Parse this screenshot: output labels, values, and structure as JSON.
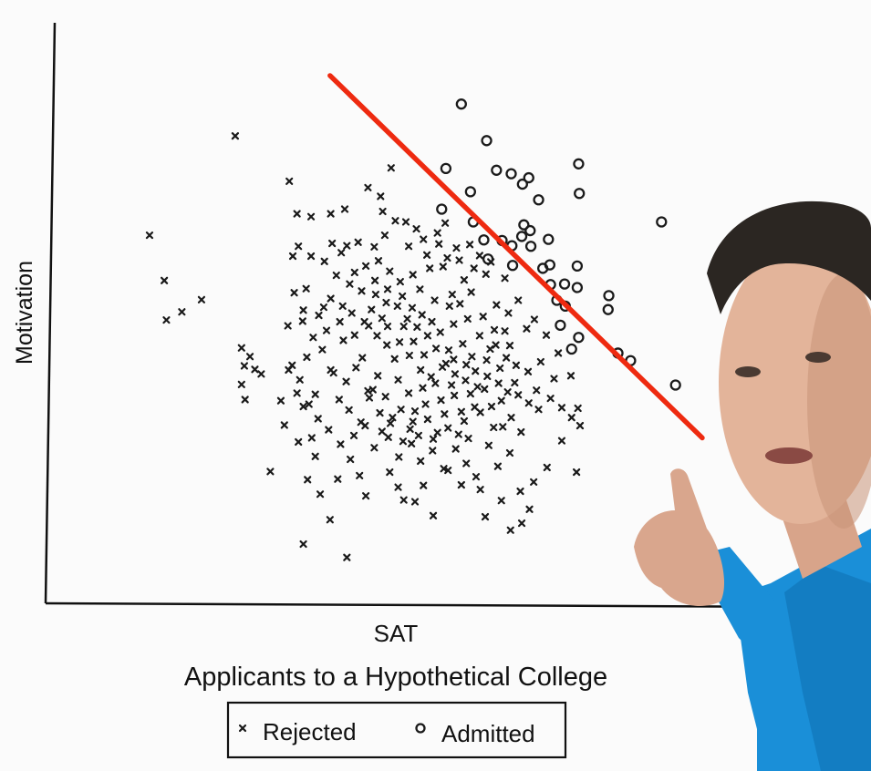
{
  "chart_data": {
    "type": "scatter",
    "title": "Applicants to a Hypothetical College",
    "xlabel": "SAT",
    "ylabel": "Motivation",
    "xlim": [
      0,
      100
    ],
    "ylim": [
      0,
      100
    ],
    "grid": false,
    "legend": {
      "placement": "bottom-center",
      "entries": [
        "Rejected",
        "Admitted"
      ]
    },
    "annotation": {
      "type": "line",
      "color": "#ee2a10",
      "from": [
        40.5,
        90.9
      ],
      "to": [
        93.5,
        28.5
      ]
    },
    "series": [
      {
        "name": "Rejected",
        "marker": "x",
        "points": [
          [
            27.0,
            80.5
          ],
          [
            14.8,
            63.4
          ],
          [
            16.9,
            55.6
          ],
          [
            22.2,
            52.3
          ],
          [
            17.2,
            48.8
          ],
          [
            19.4,
            50.2
          ],
          [
            34.7,
            72.7
          ],
          [
            35.8,
            67.1
          ],
          [
            37.8,
            66.6
          ],
          [
            40.6,
            67.1
          ],
          [
            42.6,
            67.9
          ],
          [
            42.9,
            61.6
          ],
          [
            44.5,
            62.2
          ],
          [
            45.9,
            71.6
          ],
          [
            47.7,
            70.1
          ],
          [
            48.0,
            67.5
          ],
          [
            49.8,
            65.9
          ],
          [
            51.3,
            65.7
          ],
          [
            52.8,
            64.5
          ],
          [
            49.2,
            75.0
          ],
          [
            53.8,
            62.7
          ],
          [
            55.8,
            63.8
          ],
          [
            56.9,
            65.5
          ],
          [
            57.2,
            59.5
          ],
          [
            58.9,
            59.1
          ],
          [
            60.4,
            61.8
          ],
          [
            61.8,
            59.9
          ],
          [
            41.4,
            56.5
          ],
          [
            43.3,
            55.0
          ],
          [
            45.6,
            58.1
          ],
          [
            47.4,
            59.0
          ],
          [
            49.0,
            57.2
          ],
          [
            50.5,
            55.4
          ],
          [
            52.3,
            56.6
          ],
          [
            53.3,
            54.1
          ],
          [
            54.7,
            57.7
          ],
          [
            56.6,
            58.0
          ],
          [
            57.9,
            53.2
          ],
          [
            59.6,
            55.7
          ],
          [
            60.6,
            53.6
          ],
          [
            62.7,
            56.7
          ],
          [
            64.2,
            51.4
          ],
          [
            65.9,
            50.0
          ],
          [
            67.3,
            52.2
          ],
          [
            68.5,
            47.3
          ],
          [
            69.6,
            48.9
          ],
          [
            71.3,
            46.2
          ],
          [
            73.0,
            43.1
          ],
          [
            74.8,
            39.2
          ],
          [
            75.8,
            33.6
          ],
          [
            76.1,
            30.6
          ],
          [
            35.4,
            53.5
          ],
          [
            37.1,
            54.2
          ],
          [
            36.6,
            48.6
          ],
          [
            38.1,
            45.8
          ],
          [
            39.6,
            51.0
          ],
          [
            40.0,
            47.0
          ],
          [
            41.9,
            48.5
          ],
          [
            42.4,
            45.3
          ],
          [
            44.0,
            46.2
          ],
          [
            45.1,
            42.3
          ],
          [
            46.4,
            50.6
          ],
          [
            47.9,
            49.1
          ],
          [
            48.6,
            44.5
          ],
          [
            49.7,
            42.1
          ],
          [
            51.0,
            47.7
          ],
          [
            52.4,
            45.1
          ],
          [
            53.9,
            42.8
          ],
          [
            55.0,
            48.5
          ],
          [
            56.2,
            46.7
          ],
          [
            57.4,
            43.6
          ],
          [
            58.1,
            48.1
          ],
          [
            59.4,
            44.7
          ],
          [
            60.7,
            42.5
          ],
          [
            61.8,
            46.1
          ],
          [
            63.3,
            43.8
          ],
          [
            64.7,
            40.5
          ],
          [
            66.1,
            44.4
          ],
          [
            67.0,
            41.0
          ],
          [
            68.7,
            39.9
          ],
          [
            69.9,
            36.7
          ],
          [
            41.0,
            39.7
          ],
          [
            42.8,
            38.2
          ],
          [
            44.2,
            40.6
          ],
          [
            45.9,
            36.6
          ],
          [
            47.3,
            39.2
          ],
          [
            48.4,
            35.6
          ],
          [
            50.2,
            38.5
          ],
          [
            51.7,
            36.2
          ],
          [
            52.6,
            33.1
          ],
          [
            54.1,
            34.3
          ],
          [
            55.5,
            37.9
          ],
          [
            56.8,
            32.6
          ],
          [
            58.2,
            35.8
          ],
          [
            59.6,
            31.4
          ],
          [
            61.1,
            33.8
          ],
          [
            62.5,
            36.9
          ],
          [
            63.8,
            30.3
          ],
          [
            64.9,
            34.9
          ],
          [
            66.3,
            32.0
          ],
          [
            67.7,
            29.5
          ],
          [
            37.5,
            34.3
          ],
          [
            38.8,
            31.8
          ],
          [
            40.3,
            29.9
          ],
          [
            42.0,
            27.4
          ],
          [
            43.9,
            28.9
          ],
          [
            45.5,
            30.6
          ],
          [
            46.8,
            26.8
          ],
          [
            48.8,
            28.6
          ],
          [
            50.3,
            25.2
          ],
          [
            52.1,
            27.5
          ],
          [
            53.4,
            24.5
          ],
          [
            55.2,
            28.3
          ],
          [
            56.7,
            23.2
          ],
          [
            58.4,
            26.6
          ],
          [
            59.9,
            24.1
          ],
          [
            61.3,
            21.8
          ],
          [
            63.1,
            27.2
          ],
          [
            64.4,
            23.6
          ],
          [
            66.1,
            25.9
          ],
          [
            67.6,
            19.3
          ],
          [
            68.9,
            16.2
          ],
          [
            69.5,
            20.9
          ],
          [
            71.4,
            23.4
          ],
          [
            73.5,
            28.0
          ],
          [
            75.6,
            22.6
          ],
          [
            34.5,
            47.8
          ],
          [
            35.1,
            41.0
          ],
          [
            36.2,
            38.5
          ],
          [
            37.2,
            42.4
          ],
          [
            38.4,
            36.0
          ],
          [
            39.4,
            43.7
          ],
          [
            40.6,
            40.2
          ],
          [
            41.8,
            35.1
          ],
          [
            43.2,
            33.3
          ],
          [
            44.9,
            31.2
          ],
          [
            46.1,
            35.4
          ],
          [
            47.6,
            32.8
          ],
          [
            49.1,
            31.0
          ],
          [
            50.6,
            33.4
          ],
          [
            51.9,
            30.0
          ],
          [
            53.1,
            28.9
          ],
          [
            54.4,
            31.7
          ],
          [
            55.8,
            29.4
          ],
          [
            57.3,
            30.2
          ],
          [
            58.8,
            29.1
          ],
          [
            60.2,
            28.4
          ],
          [
            27.9,
            44.0
          ],
          [
            28.3,
            40.9
          ],
          [
            27.9,
            37.7
          ],
          [
            28.4,
            35.1
          ],
          [
            29.1,
            42.5
          ],
          [
            29.8,
            40.3
          ],
          [
            30.7,
            39.5
          ],
          [
            32.0,
            22.7
          ],
          [
            34.6,
            40.2
          ],
          [
            35.8,
            36.2
          ],
          [
            36.7,
            33.9
          ],
          [
            37.9,
            28.5
          ],
          [
            38.4,
            25.3
          ],
          [
            37.3,
            21.3
          ],
          [
            36.7,
            10.2
          ],
          [
            40.5,
            14.4
          ],
          [
            42.9,
            7.9
          ],
          [
            50.2,
            20.0
          ],
          [
            52.6,
            17.5
          ],
          [
            55.2,
            15.1
          ],
          [
            57.3,
            22.9
          ],
          [
            59.2,
            20.4
          ],
          [
            61.9,
            19.6
          ],
          [
            62.6,
            14.9
          ],
          [
            64.9,
            17.7
          ],
          [
            66.2,
            12.6
          ],
          [
            67.8,
            13.8
          ],
          [
            51.0,
            17.8
          ],
          [
            53.8,
            20.3
          ],
          [
            49.0,
            22.6
          ],
          [
            45.6,
            18.5
          ],
          [
            44.7,
            22.0
          ],
          [
            43.4,
            24.8
          ],
          [
            41.6,
            21.4
          ],
          [
            39.1,
            18.8
          ],
          [
            33.5,
            34.9
          ],
          [
            34.0,
            30.7
          ],
          [
            36.0,
            27.8
          ],
          [
            46.0,
            47.8
          ],
          [
            47.0,
            53.2
          ],
          [
            48.5,
            51.8
          ],
          [
            50.8,
            52.9
          ],
          [
            52.2,
            50.9
          ],
          [
            53.6,
            49.7
          ],
          [
            55.4,
            52.2
          ],
          [
            57.5,
            51.2
          ],
          [
            59.0,
            51.6
          ],
          [
            60.1,
            49.0
          ],
          [
            62.3,
            49.4
          ],
          [
            63.9,
            47.1
          ],
          [
            65.4,
            46.9
          ],
          [
            46.8,
            61.4
          ],
          [
            48.3,
            63.4
          ],
          [
            51.7,
            61.5
          ],
          [
            54.3,
            60.0
          ],
          [
            56.0,
            61.9
          ],
          [
            58.5,
            61.2
          ],
          [
            61.0,
            57.7
          ],
          [
            63.4,
            58.8
          ],
          [
            65.4,
            56.0
          ],
          [
            35.2,
            59.8
          ],
          [
            36.0,
            61.5
          ],
          [
            37.8,
            59.8
          ],
          [
            39.7,
            58.9
          ],
          [
            40.8,
            62.0
          ],
          [
            42.1,
            60.4
          ],
          [
            44.0,
            57.0
          ],
          [
            45.0,
            53.8
          ],
          [
            46.9,
            55.6
          ],
          [
            48.7,
            54.1
          ],
          [
            50.1,
            51.2
          ],
          [
            51.5,
            49.0
          ],
          [
            52.9,
            47.6
          ],
          [
            54.4,
            46.1
          ],
          [
            55.6,
            43.9
          ],
          [
            57.0,
            41.3
          ],
          [
            58.3,
            39.5
          ],
          [
            59.8,
            38.4
          ],
          [
            61.5,
            37.3
          ],
          [
            62.9,
            39.1
          ],
          [
            64.5,
            37.9
          ],
          [
            65.8,
            36.4
          ],
          [
            67.3,
            35.9
          ],
          [
            68.8,
            34.5
          ],
          [
            70.2,
            33.4
          ],
          [
            70.5,
            41.6
          ],
          [
            72.4,
            38.7
          ],
          [
            71.9,
            35.3
          ],
          [
            73.5,
            33.7
          ],
          [
            74.9,
            32.0
          ],
          [
            36.7,
            50.5
          ],
          [
            38.9,
            49.6
          ],
          [
            40.6,
            52.5
          ],
          [
            42.3,
            51.2
          ],
          [
            43.6,
            50.0
          ],
          [
            45.4,
            48.5
          ],
          [
            47.2,
            46.1
          ],
          [
            48.7,
            47.7
          ],
          [
            50.4,
            45.0
          ],
          [
            51.8,
            42.7
          ],
          [
            53.4,
            40.2
          ],
          [
            54.9,
            39.0
          ],
          [
            56.5,
            40.7
          ],
          [
            58.1,
            42.0
          ],
          [
            59.9,
            41.1
          ],
          [
            61.2,
            40.0
          ],
          [
            62.8,
            41.9
          ],
          [
            64.1,
            44.5
          ],
          [
            65.6,
            42.3
          ],
          [
            66.8,
            38.0
          ],
          [
            46.6,
            36.8
          ],
          [
            47.9,
            29.6
          ],
          [
            49.4,
            32.0
          ],
          [
            50.9,
            27.9
          ],
          [
            52.3,
            31.3
          ],
          [
            53.7,
            37.1
          ],
          [
            55.1,
            26.3
          ],
          [
            56.3,
            35.0
          ],
          [
            57.8,
            37.6
          ],
          [
            59.2,
            33.0
          ],
          [
            60.5,
            36.1
          ],
          [
            61.9,
            32.9
          ],
          [
            63.5,
            33.9
          ],
          [
            65.1,
            30.4
          ]
        ]
      },
      {
        "name": "Admitted",
        "marker": "o",
        "points": [
          [
            59.2,
            86.0
          ],
          [
            62.8,
            79.7
          ],
          [
            64.2,
            74.6
          ],
          [
            66.3,
            74.0
          ],
          [
            67.9,
            72.2
          ],
          [
            68.8,
            73.3
          ],
          [
            70.2,
            69.5
          ],
          [
            75.9,
            75.7
          ],
          [
            76.0,
            70.6
          ],
          [
            57.0,
            74.9
          ],
          [
            56.4,
            67.9
          ],
          [
            60.5,
            70.9
          ],
          [
            60.9,
            65.7
          ],
          [
            62.4,
            62.6
          ],
          [
            63.0,
            59.3
          ],
          [
            65.0,
            62.5
          ],
          [
            66.4,
            61.6
          ],
          [
            66.5,
            58.2
          ],
          [
            67.8,
            63.2
          ],
          [
            68.1,
            65.2
          ],
          [
            69.0,
            64.2
          ],
          [
            69.1,
            61.5
          ],
          [
            71.8,
            58.3
          ],
          [
            71.6,
            62.7
          ],
          [
            70.8,
            57.7
          ],
          [
            71.9,
            54.9
          ],
          [
            72.8,
            52.2
          ],
          [
            73.9,
            55.0
          ],
          [
            74.0,
            51.2
          ],
          [
            75.7,
            58.1
          ],
          [
            75.7,
            54.4
          ],
          [
            80.2,
            53.0
          ],
          [
            80.1,
            50.6
          ],
          [
            75.9,
            45.8
          ],
          [
            81.5,
            43.1
          ],
          [
            83.3,
            41.8
          ],
          [
            87.7,
            65.7
          ],
          [
            89.7,
            37.6
          ],
          [
            74.9,
            43.8
          ],
          [
            73.3,
            47.9
          ]
        ]
      }
    ]
  }
}
